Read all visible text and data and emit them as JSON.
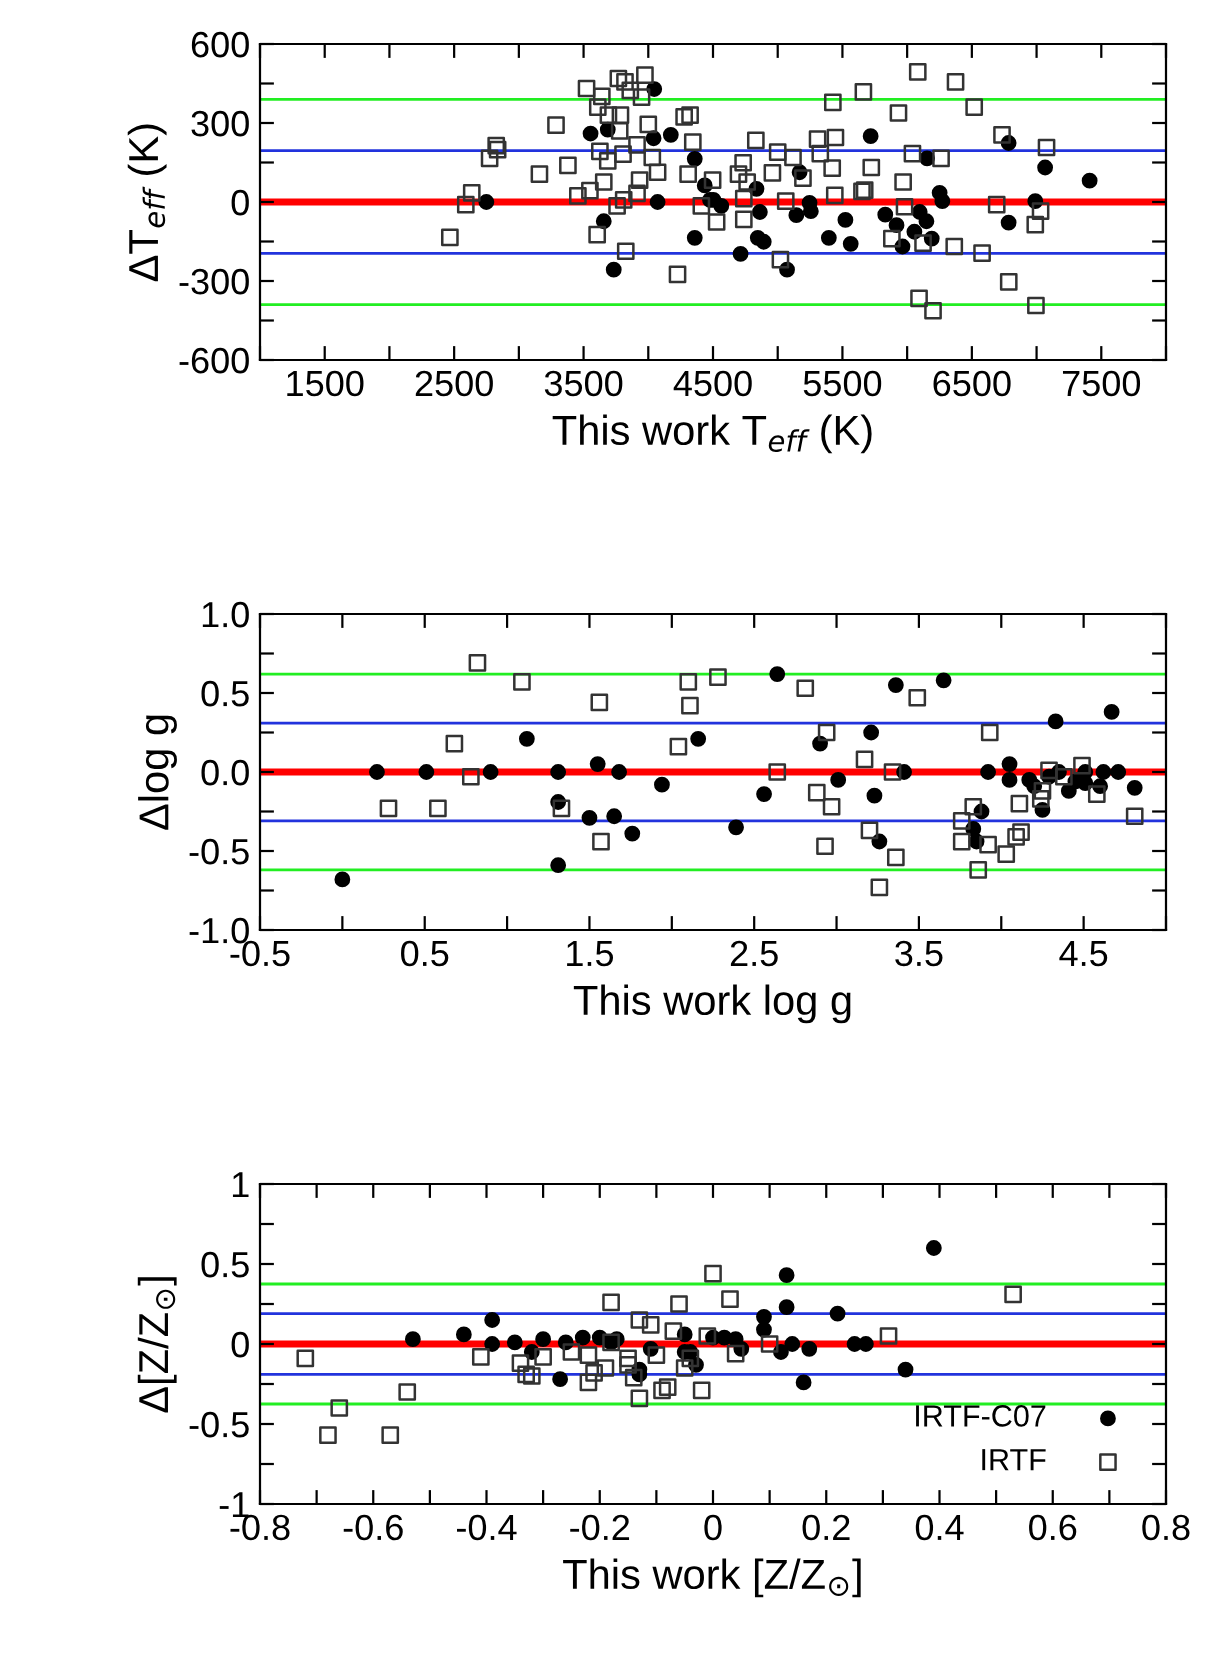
{
  "chart_data": [
    {
      "type": "scatter",
      "xlabel": "This work T$_{eff}$ (K)",
      "ylabel": "ΔT$_{eff}$ (K)",
      "xlim": [
        1000,
        8000
      ],
      "ylim": [
        -600,
        600
      ],
      "xticks": [
        {
          "value": 1000,
          "label": null
        },
        1500,
        {
          "value": 2000,
          "label": null
        },
        2500,
        {
          "value": 3000,
          "label": null
        },
        3500,
        {
          "value": 4000,
          "label": null
        },
        4500,
        {
          "value": 5000,
          "label": null
        },
        5500,
        {
          "value": 6000,
          "label": null
        },
        6500,
        {
          "value": 7000,
          "label": null
        },
        7500,
        {
          "value": 8000,
          "label": null
        }
      ],
      "yticks": [
        -600,
        {
          "value": -450,
          "label": null
        },
        -300,
        {
          "value": -150,
          "label": null
        },
        0,
        {
          "value": 150,
          "label": null
        },
        300,
        {
          "value": 450,
          "label": null
        },
        600
      ],
      "grid": false,
      "legend": false,
      "ref_lines": [
        {
          "axis": "y",
          "value": 0,
          "color": "#ff0000"
        },
        {
          "axis": "y",
          "value": 195,
          "color": "#2233dd"
        },
        {
          "axis": "y",
          "value": -195,
          "color": "#2233dd"
        },
        {
          "axis": "y",
          "value": 390,
          "color": "#22ee22"
        },
        {
          "axis": "y",
          "value": -390,
          "color": "#22ee22"
        }
      ],
      "series": [
        {
          "color": "#000000",
          "marker": "circle",
          "x": [
            2749,
            3554,
            3656,
            3687,
            3733,
            4041,
            4046,
            4072,
            4174,
            4359,
            4359,
            4436,
            4477,
            4503,
            4564,
            4713,
            4836,
            4862,
            4846,
            4892,
            5072,
            5144,
            5169,
            5246,
            5256,
            5395,
            5523,
            5564,
            5718,
            5831,
            5918,
            5964,
            6056,
            6097,
            6149,
            6154,
            6190,
            6251,
            6272,
            6784,
            6784,
            6990,
            7066,
            7410
          ],
          "values": [
            0,
            260,
            -73,
            275,
            -257,
            242,
            429,
            0,
            255,
            164,
            -136,
            63,
            8,
            8,
            -15,
            -197,
            50,
            -38,
            -136,
            -151,
            -257,
            -50,
            113,
            -3,
            -35,
            -136,
            -68,
            -159,
            250,
            -48,
            -88,
            -169,
            -113,
            -38,
            -73,
            166,
            -139,
            35,
            3,
            224,
            -78,
            3,
            131,
            81
          ]
        },
        {
          "color": "#333333",
          "marker": "square",
          "x": [
            2467,
            2590,
            2636,
            2774,
            2825,
            2836,
            3159,
            3287,
            3379,
            3456,
            3523,
            3549,
            3605,
            3626,
            3641,
            3656,
            3610,
            3687,
            3692,
            3769,
            3759,
            3779,
            3785,
            3805,
            3820,
            3861,
            3826,
            3810,
            3913,
            3933,
            3948,
            3974,
            3913,
            4000,
            4031,
            4072,
            4226,
            4277,
            4323,
            4308,
            4344,
            4497,
            4410,
            4528,
            4697,
            4733,
            4764,
            4831,
            4738,
            4738,
            4959,
            5000,
            5021,
            5062,
            5118,
            5195,
            5308,
            5329,
            5446,
            5426,
            5441,
            5421,
            5651,
            5672,
            5662,
            5723,
            5882,
            5933,
            5969,
            5980,
            6041,
            6082,
            6092,
            6123,
            6200,
            6262,
            6364,
            6374,
            6518,
            6579,
            6692,
            6733,
            6785,
            6990,
            6995,
            7031,
            7077
          ],
          "values": [
            -134,
            -10,
            35,
            166,
            214,
            199,
            106,
            292,
            139,
            23,
            431,
            43,
            -124,
            192,
            401,
            76,
            360,
            156,
            330,
            469,
            -15,
            270,
            330,
            182,
            456,
            424,
            -187,
            8,
            217,
            83,
            398,
            482,
            33,
            295,
            169,
            113,
            -275,
            323,
            330,
            106,
            227,
            83,
            -15,
            -76,
            106,
            149,
            76,
            234,
            13,
            -66,
            111,
            189,
            -219,
            3,
            169,
            91,
            239,
            184,
            245,
            378,
            25,
            129,
            40,
            45,
            418,
            131,
            -139,
            338,
            76,
            -18,
            184,
            494,
            -366,
            -156,
            -413,
            166,
            -169,
            456,
            360,
            -194,
            -10,
            255,
            -303,
            -86,
            -393,
            -35,
            207
          ]
        }
      ]
    },
    {
      "type": "scatter",
      "xlabel": "This work log g",
      "ylabel": "Δlog g",
      "xlim": [
        -0.5,
        5.0
      ],
      "ylim": [
        -1.0,
        1.0
      ],
      "xticks": [
        -0.5,
        {
          "value": 0,
          "label": null
        },
        0.5,
        {
          "value": 1,
          "label": null
        },
        1.5,
        {
          "value": 2,
          "label": null
        },
        2.5,
        {
          "value": 3,
          "label": null
        },
        3.5,
        {
          "value": 4,
          "label": null
        },
        4.5,
        {
          "value": 5,
          "label": null
        }
      ],
      "yticks": [
        {
          "value": -1.0,
          "label": "-1.0"
        },
        {
          "value": -0.75,
          "label": null
        },
        {
          "value": -0.5,
          "label": "-0.5"
        },
        {
          "value": -0.25,
          "label": null
        },
        {
          "value": 0,
          "label": "0.0"
        },
        {
          "value": 0.25,
          "label": null
        },
        {
          "value": 0.5,
          "label": "0.5"
        },
        {
          "value": 0.75,
          "label": null
        },
        {
          "value": 1.0,
          "label": "1.0"
        }
      ],
      "grid": false,
      "legend": false,
      "ref_lines": [
        {
          "axis": "y",
          "value": 0,
          "color": "#ff0000"
        },
        {
          "axis": "y",
          "value": 0.31,
          "color": "#2233dd"
        },
        {
          "axis": "y",
          "value": -0.31,
          "color": "#2233dd"
        },
        {
          "axis": "y",
          "value": 0.62,
          "color": "#22ee22"
        },
        {
          "axis": "y",
          "value": -0.62,
          "color": "#22ee22"
        }
      ],
      "series": [
        {
          "color": "#000000",
          "marker": "circle",
          "x": [
            0.0,
            0.21,
            0.51,
            0.9,
            1.12,
            1.31,
            1.31,
            1.31,
            1.55,
            1.5,
            1.65,
            1.68,
            1.76,
            1.94,
            2.16,
            2.39,
            2.56,
            2.64,
            2.9,
            3.01,
            3.21,
            3.23,
            3.26,
            3.36,
            3.41,
            3.65,
            3.83,
            3.88,
            3.85,
            3.92,
            4.05,
            4.05,
            4.17,
            4.2,
            4.25,
            4.29,
            4.33,
            4.35,
            4.41,
            4.45,
            4.51,
            4.51,
            4.62,
            4.6,
            4.67,
            4.71,
            4.81
          ],
          "values": [
            -0.68,
            0,
            0,
            0,
            0.21,
            0,
            -0.19,
            -0.59,
            0.05,
            -0.29,
            -0.28,
            0,
            -0.39,
            -0.08,
            0.21,
            -0.35,
            -0.14,
            0.62,
            0.18,
            -0.05,
            0.25,
            -0.15,
            -0.44,
            0.55,
            0,
            0.58,
            -0.36,
            -0.25,
            -0.44,
            0,
            0.05,
            -0.05,
            -0.05,
            -0.09,
            -0.24,
            -0.03,
            0.32,
            0,
            -0.12,
            -0.06,
            -0.07,
            0,
            0,
            -0.09,
            0.38,
            0,
            -0.1
          ]
        },
        {
          "color": "#333333",
          "marker": "square",
          "x": [
            0.82,
            0.28,
            0.58,
            0.68,
            0.78,
            1.09,
            1.33,
            1.56,
            1.57,
            2.04,
            2.1,
            2.11,
            2.28,
            2.64,
            2.81,
            2.88,
            2.93,
            2.94,
            2.97,
            3.17,
            3.2,
            3.26,
            3.34,
            3.36,
            3.49,
            3.76,
            3.76,
            3.83,
            3.86,
            3.92,
            3.93,
            4.03,
            4.09,
            4.11,
            4.12,
            4.24,
            4.25,
            4.29,
            4.38,
            4.49,
            4.58,
            4.81
          ],
          "values": [
            0.69,
            -0.23,
            -0.23,
            0.18,
            -0.03,
            0.57,
            -0.23,
            0.44,
            -0.44,
            0.16,
            0.57,
            0.42,
            0.6,
            0,
            0.53,
            -0.13,
            -0.47,
            0.25,
            -0.22,
            0.08,
            -0.37,
            -0.73,
            0,
            -0.54,
            0.47,
            -0.31,
            -0.44,
            -0.22,
            -0.62,
            -0.46,
            0.25,
            -0.52,
            -0.41,
            -0.2,
            -0.38,
            -0.17,
            -0.12,
            0.01,
            -0.03,
            0.04,
            -0.14,
            -0.28
          ]
        }
      ]
    },
    {
      "type": "scatter",
      "xlabel": "This work [Z/Z$_{⊙}$]",
      "ylabel": "Δ[Z/Z$_{⊙}$]",
      "xlim": [
        -0.8,
        0.8
      ],
      "ylim": [
        -1,
        1
      ],
      "xticks": [
        -0.8,
        {
          "value": -0.7,
          "label": null
        },
        -0.6,
        {
          "value": -0.5,
          "label": null
        },
        -0.4,
        {
          "value": -0.3,
          "label": null
        },
        -0.2,
        {
          "value": -0.1,
          "label": null
        },
        0,
        {
          "value": 0.1,
          "label": null
        },
        0.2,
        {
          "value": 0.3,
          "label": null
        },
        0.4,
        {
          "value": 0.5,
          "label": null
        },
        0.6,
        {
          "value": 0.7,
          "label": null
        },
        0.8
      ],
      "yticks": [
        -1,
        {
          "value": -0.75,
          "label": null
        },
        -0.5,
        {
          "value": -0.25,
          "label": null
        },
        0,
        {
          "value": 0.25,
          "label": null
        },
        0.5,
        {
          "value": 0.75,
          "label": null
        },
        1
      ],
      "grid": false,
      "legend": "bottom right",
      "ref_lines": [
        {
          "axis": "y",
          "value": 0,
          "color": "#ff0000"
        },
        {
          "axis": "y",
          "value": 0.19,
          "color": "#2233dd"
        },
        {
          "axis": "y",
          "value": -0.19,
          "color": "#2233dd"
        },
        {
          "axis": "y",
          "value": 0.375,
          "color": "#22ee22"
        },
        {
          "axis": "y",
          "value": -0.375,
          "color": "#22ee22"
        }
      ],
      "series": [
        {
          "name": "IRTF-C07",
          "color": "#000000",
          "marker": "circle",
          "x": [
            -0.53,
            -0.44,
            -0.39,
            -0.39,
            -0.35,
            -0.32,
            -0.3,
            -0.27,
            -0.26,
            -0.23,
            -0.2,
            -0.18,
            -0.17,
            -0.13,
            -0.13,
            -0.11,
            -0.05,
            -0.05,
            -0.04,
            -0.03,
            0.0,
            0.02,
            0.04,
            0.05,
            0.09,
            0.09,
            0.12,
            0.13,
            0.13,
            0.14,
            0.16,
            0.17,
            0.22,
            0.25,
            0.27,
            0.34,
            0.39
          ],
          "values": [
            0.03,
            0.06,
            0.15,
            0.0,
            0.01,
            -0.05,
            0.03,
            -0.22,
            0.01,
            0.04,
            0.04,
            0.01,
            0.03,
            -0.16,
            -0.19,
            -0.03,
            0.06,
            -0.05,
            -0.05,
            -0.13,
            0.04,
            0.04,
            0.03,
            -0.03,
            0.17,
            0.09,
            -0.05,
            0.43,
            0.23,
            0.0,
            -0.24,
            -0.03,
            0.19,
            0,
            0,
            -0.16,
            0.6
          ]
        },
        {
          "name": "IRTF",
          "color": "#333333",
          "marker": "square",
          "x": [
            -0.72,
            -0.66,
            -0.68,
            -0.57,
            -0.54,
            -0.41,
            -0.34,
            -0.33,
            -0.32,
            -0.3,
            -0.25,
            -0.22,
            -0.22,
            -0.21,
            -0.19,
            -0.18,
            -0.18,
            -0.15,
            -0.15,
            -0.14,
            -0.13,
            -0.13,
            -0.11,
            -0.1,
            -0.09,
            -0.08,
            -0.07,
            -0.06,
            -0.05,
            -0.04,
            -0.02,
            -0.01,
            0.0,
            0.03,
            0.04,
            0.1,
            0.31,
            0.53
          ],
          "values": [
            -0.09,
            -0.4,
            -0.57,
            -0.57,
            -0.3,
            -0.08,
            -0.12,
            -0.19,
            -0.2,
            -0.08,
            -0.05,
            -0.07,
            -0.24,
            -0.18,
            -0.15,
            0.26,
            0.01,
            -0.09,
            -0.13,
            -0.21,
            -0.34,
            0.15,
            0.12,
            -0.07,
            -0.29,
            -0.27,
            0.08,
            0.25,
            -0.15,
            -0.09,
            -0.29,
            0.05,
            0.44,
            0.28,
            -0.06,
            0.0,
            0.05,
            0.31
          ]
        }
      ]
    }
  ]
}
